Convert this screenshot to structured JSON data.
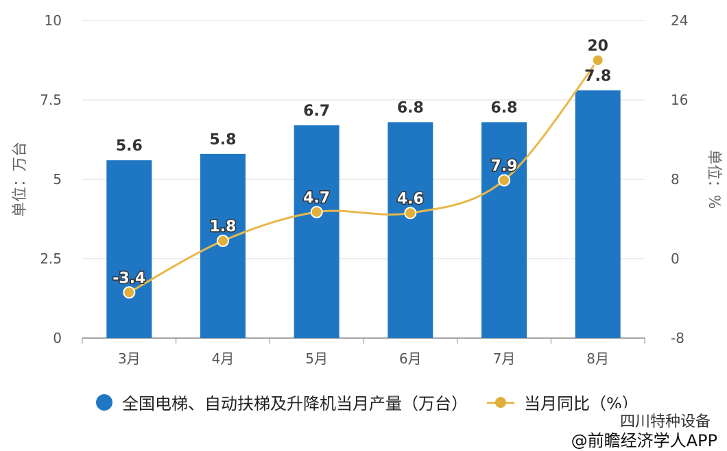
{
  "chart_data": {
    "type": "bar+line",
    "categories": [
      "3月",
      "4月",
      "5月",
      "6月",
      "7月",
      "8月"
    ],
    "series": [
      {
        "name": "全国电梯、自动扶梯及升降机当月产量（万台）",
        "type": "bar",
        "axis": "left",
        "values": [
          5.6,
          5.8,
          6.7,
          6.8,
          6.8,
          7.8
        ],
        "labels": [
          "5.6",
          "5.8",
          "6.7",
          "6.8",
          "6.8",
          "7.8"
        ],
        "color": "#1f77c4"
      },
      {
        "name": "当月同比（%）",
        "type": "line",
        "axis": "right",
        "values": [
          -3.4,
          1.8,
          4.7,
          4.6,
          7.9,
          20
        ],
        "labels": [
          "-3.4",
          "1.8",
          "4.7",
          "4.6",
          "7.9",
          "20"
        ],
        "color": "#e8b84a"
      }
    ],
    "ylabel": "单位：万台",
    "y2label": "单位：%",
    "ylim": [
      0,
      10
    ],
    "y2lim": [
      -8,
      24
    ],
    "yticks": [
      "0",
      "2.5",
      "5",
      "7.5",
      "10"
    ],
    "y2ticks": [
      "-8",
      "0",
      "8",
      "16",
      "24"
    ],
    "grid": true,
    "legend_position": "bottom"
  },
  "watermark": {
    "account": "四川特种设备",
    "source": "@前瞻经济学人APP"
  }
}
